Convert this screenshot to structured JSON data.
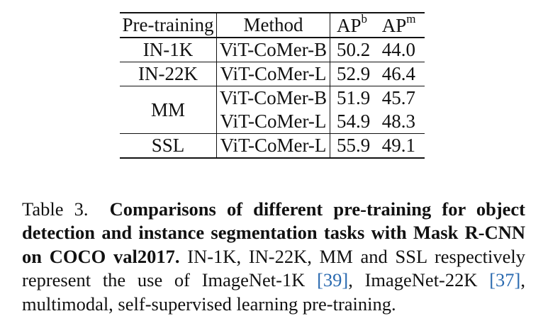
{
  "table": {
    "headers": {
      "pretraining": "Pre-training",
      "method": "Method",
      "ap_b": "AP",
      "ap_b_sup": "b",
      "ap_m": "AP",
      "ap_m_sup": "m"
    },
    "rows": [
      {
        "pretraining": "IN-1K",
        "method": "ViT-CoMer-B",
        "ap_b": "50.2",
        "ap_m": "44.0"
      },
      {
        "pretraining": "IN-22K",
        "method": "ViT-CoMer-L",
        "ap_b": "52.9",
        "ap_m": "46.4"
      },
      {
        "pretraining": "MM",
        "method": "ViT-CoMer-B",
        "ap_b": "51.9",
        "ap_m": "45.7"
      },
      {
        "pretraining": "",
        "method": "ViT-CoMer-L",
        "ap_b": "54.9",
        "ap_m": "48.3"
      },
      {
        "pretraining": "SSL",
        "method": "ViT-CoMer-L",
        "ap_b": "55.9",
        "ap_m": "49.1"
      }
    ]
  },
  "caption": {
    "label": "Table 3.",
    "bold": "Comparisons of different pre-training for object detection and instance segmentation tasks with Mask R-CNN on COCO val2017.",
    "text_1": "IN-1K, IN-22K, MM and SSL respectively represent the use of ImageNet-1K ",
    "cite_1": "[39]",
    "text_2": ", ImageNet-22K ",
    "cite_2": "[37]",
    "text_3": ", multimodal, self-supervised learning pre-training."
  },
  "colors": {
    "citation": "#2a6ab0",
    "text": "#111111"
  }
}
